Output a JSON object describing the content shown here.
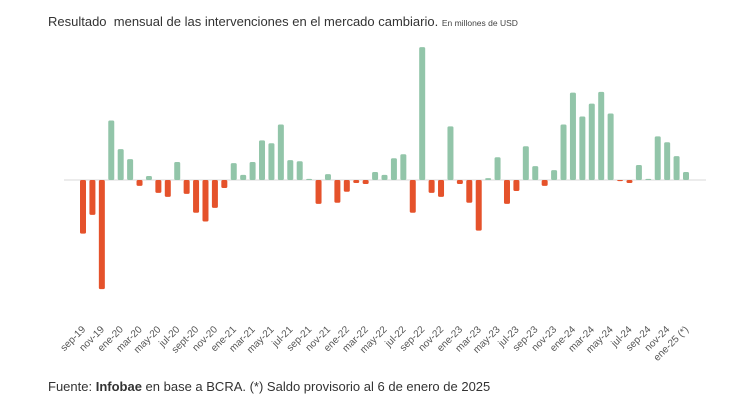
{
  "chart_data": {
    "type": "bar",
    "title": "Resultado  mensual de las intervenciones en el mercado cambiario.",
    "subtitle": "En millones de USD",
    "xlabel": "",
    "ylabel": "",
    "grid": false,
    "legend": "none",
    "colors": {
      "positive": "#92c5a9",
      "negative": "#e5522b",
      "zero_line": "#d9d9d9"
    },
    "categories": [
      "sep-19",
      "oct-19",
      "nov-19",
      "dic-19",
      "ene-20",
      "feb-20",
      "mar-20",
      "abr-20",
      "may-20",
      "jun-20",
      "jul-20",
      "ago-20",
      "sep-20",
      "oct-20",
      "nov-20",
      "dic-20",
      "ene-21",
      "feb-21",
      "mar-21",
      "abr-21",
      "may-21",
      "jun-21",
      "jul-21",
      "ago-21",
      "sep-21",
      "oct-21",
      "nov-21",
      "dic-21",
      "ene-22",
      "feb-22",
      "mar-22",
      "abr-22",
      "may-22",
      "jun-22",
      "jul-22",
      "ago-22",
      "sep-22",
      "oct-22",
      "nov-22",
      "dic-22",
      "ene-23",
      "feb-23",
      "mar-23",
      "abr-23",
      "may-23",
      "jun-23",
      "jul-23",
      "ago-23",
      "sep-23",
      "oct-23",
      "nov-23",
      "dic-23",
      "ene-24",
      "feb-24",
      "mar-24",
      "abr-24",
      "may-24",
      "jun-24",
      "jul-24",
      "ago-24",
      "sep-24",
      "oct-24",
      "nov-24",
      "dic-24",
      "ene-25"
    ],
    "values": [
      -2000,
      -1300,
      -4070,
      2220,
      1150,
      780,
      -220,
      150,
      -480,
      -630,
      670,
      -520,
      -1220,
      -1550,
      -1040,
      -300,
      630,
      190,
      670,
      1480,
      1370,
      2070,
      740,
      700,
      40,
      -890,
      220,
      -850,
      -440,
      -110,
      -150,
      300,
      190,
      810,
      960,
      -1220,
      4960,
      -480,
      -630,
      2000,
      -150,
      -850,
      -1890,
      70,
      850,
      -890,
      -410,
      1260,
      520,
      -220,
      370,
      2070,
      3260,
      2370,
      2850,
      3290,
      2480,
      -40,
      -110,
      560,
      40,
      1630,
      1410,
      890,
      300
    ],
    "tick_labels": [
      "sep-19",
      "nov-19",
      "ene-20",
      "mar-20",
      "may-20",
      "jul-20",
      "sept-20",
      "nov-20",
      "ene-21",
      "mar-21",
      "may-21",
      "jul-21",
      "sep-21",
      "nov-21",
      "ene-22",
      "mar-22",
      "may-22",
      "jul-22",
      "sep-22",
      "nov-22",
      "ene-23",
      "mar-23",
      "may-23",
      "jul-23",
      "sep-23",
      "nov-23",
      "ene-24",
      "mar-24",
      "may-24",
      "jul-24",
      "sep-24",
      "nov-24",
      "ene-25 (*)"
    ],
    "ylim": [
      -4100,
      5000
    ]
  },
  "footer": {
    "prefix": "Fuente: ",
    "brand": "Infobae",
    "rest": " en base a BCRA. (*) Saldo provisorio al 6 de enero de 2025"
  }
}
